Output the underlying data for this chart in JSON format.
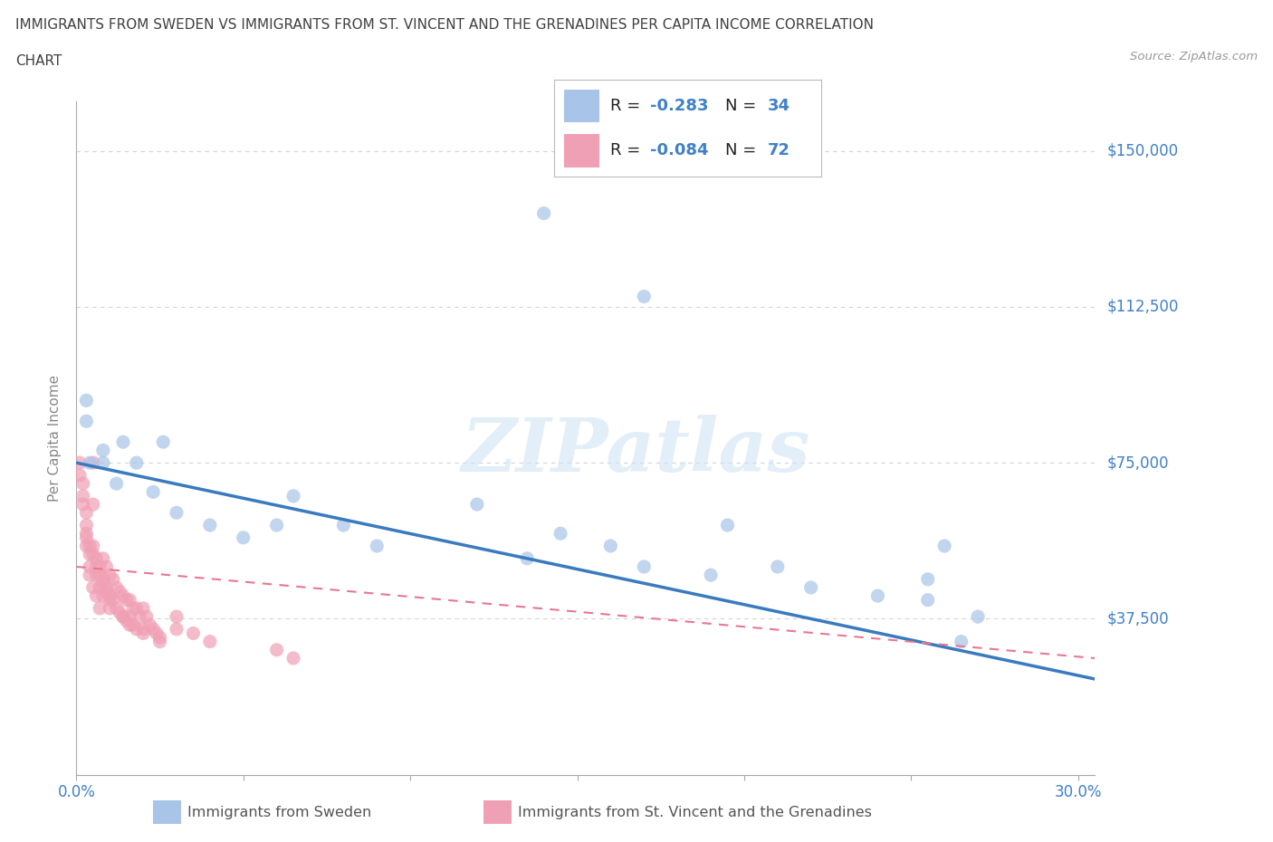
{
  "title_line1": "IMMIGRANTS FROM SWEDEN VS IMMIGRANTS FROM ST. VINCENT AND THE GRENADINES PER CAPITA INCOME CORRELATION",
  "title_line2": "CHART",
  "source": "Source: ZipAtlas.com",
  "ylabel": "Per Capita Income",
  "xlim": [
    0.0,
    0.305
  ],
  "ylim": [
    0,
    162000
  ],
  "yticks": [
    0,
    37500,
    75000,
    112500,
    150000
  ],
  "ytick_labels": [
    "",
    "$37,500",
    "$75,000",
    "$112,500",
    "$150,000"
  ],
  "xticks": [
    0.0,
    0.05,
    0.1,
    0.15,
    0.2,
    0.25,
    0.3
  ],
  "xtick_labels_show": [
    "0.0%",
    "",
    "",
    "",
    "",
    "",
    "30.0%"
  ],
  "legend_R_sweden": "-0.283",
  "legend_N_sweden": "34",
  "legend_R_svg": "-0.084",
  "legend_N_svg": "72",
  "sweden_color": "#a8c4e8",
  "svg_color": "#f0a0b4",
  "sweden_line_color": "#3a7abf",
  "svg_line_color": "#e87890",
  "watermark": "ZIPatlas",
  "background_color": "#ffffff",
  "grid_color": "#c8c8d0",
  "title_color": "#404040",
  "axis_label_color": "#888888",
  "tick_color": "#4080c8",
  "legend_label_color": "#555555",
  "sweden_line_x": [
    0.0,
    0.305
  ],
  "sweden_line_y": [
    75000,
    23000
  ],
  "svg_line_x": [
    0.0,
    0.305
  ],
  "svg_line_y": [
    50000,
    28000
  ],
  "sweden_x": [
    0.004,
    0.008,
    0.014,
    0.003,
    0.003,
    0.008,
    0.012,
    0.018,
    0.023,
    0.026,
    0.03,
    0.04,
    0.05,
    0.06,
    0.065,
    0.08,
    0.09,
    0.12,
    0.135,
    0.145,
    0.16,
    0.17,
    0.19,
    0.195,
    0.21,
    0.22,
    0.24,
    0.255,
    0.26,
    0.27,
    0.14,
    0.17,
    0.255,
    0.265
  ],
  "sweden_y": [
    75000,
    78000,
    80000,
    85000,
    90000,
    75000,
    70000,
    75000,
    68000,
    80000,
    63000,
    60000,
    57000,
    60000,
    67000,
    60000,
    55000,
    65000,
    52000,
    58000,
    55000,
    50000,
    48000,
    60000,
    50000,
    45000,
    43000,
    47000,
    55000,
    38000,
    135000,
    115000,
    42000,
    32000
  ],
  "svg_x": [
    0.001,
    0.001,
    0.002,
    0.002,
    0.002,
    0.003,
    0.003,
    0.003,
    0.003,
    0.004,
    0.004,
    0.004,
    0.005,
    0.005,
    0.005,
    0.005,
    0.006,
    0.006,
    0.006,
    0.007,
    0.007,
    0.007,
    0.008,
    0.008,
    0.008,
    0.009,
    0.009,
    0.01,
    0.01,
    0.01,
    0.011,
    0.011,
    0.012,
    0.012,
    0.013,
    0.013,
    0.014,
    0.014,
    0.015,
    0.015,
    0.016,
    0.016,
    0.017,
    0.017,
    0.018,
    0.018,
    0.019,
    0.02,
    0.02,
    0.021,
    0.022,
    0.023,
    0.024,
    0.025,
    0.003,
    0.004,
    0.005,
    0.006,
    0.007,
    0.008,
    0.009,
    0.01,
    0.014,
    0.016,
    0.02,
    0.025,
    0.03,
    0.03,
    0.035,
    0.04,
    0.06,
    0.065
  ],
  "svg_y": [
    75000,
    72000,
    70000,
    67000,
    65000,
    63000,
    60000,
    58000,
    55000,
    53000,
    50000,
    48000,
    75000,
    65000,
    55000,
    45000,
    52000,
    48000,
    43000,
    50000,
    45000,
    40000,
    52000,
    47000,
    43000,
    50000,
    45000,
    48000,
    43000,
    40000,
    47000,
    42000,
    45000,
    40000,
    44000,
    39000,
    43000,
    38000,
    42000,
    37000,
    42000,
    38000,
    40000,
    36000,
    40000,
    35000,
    38000,
    40000,
    35000,
    38000,
    36000,
    35000,
    34000,
    33000,
    57000,
    55000,
    53000,
    50000,
    48000,
    46000,
    44000,
    42000,
    38000,
    36000,
    34000,
    32000,
    38000,
    35000,
    34000,
    32000,
    30000,
    28000
  ]
}
